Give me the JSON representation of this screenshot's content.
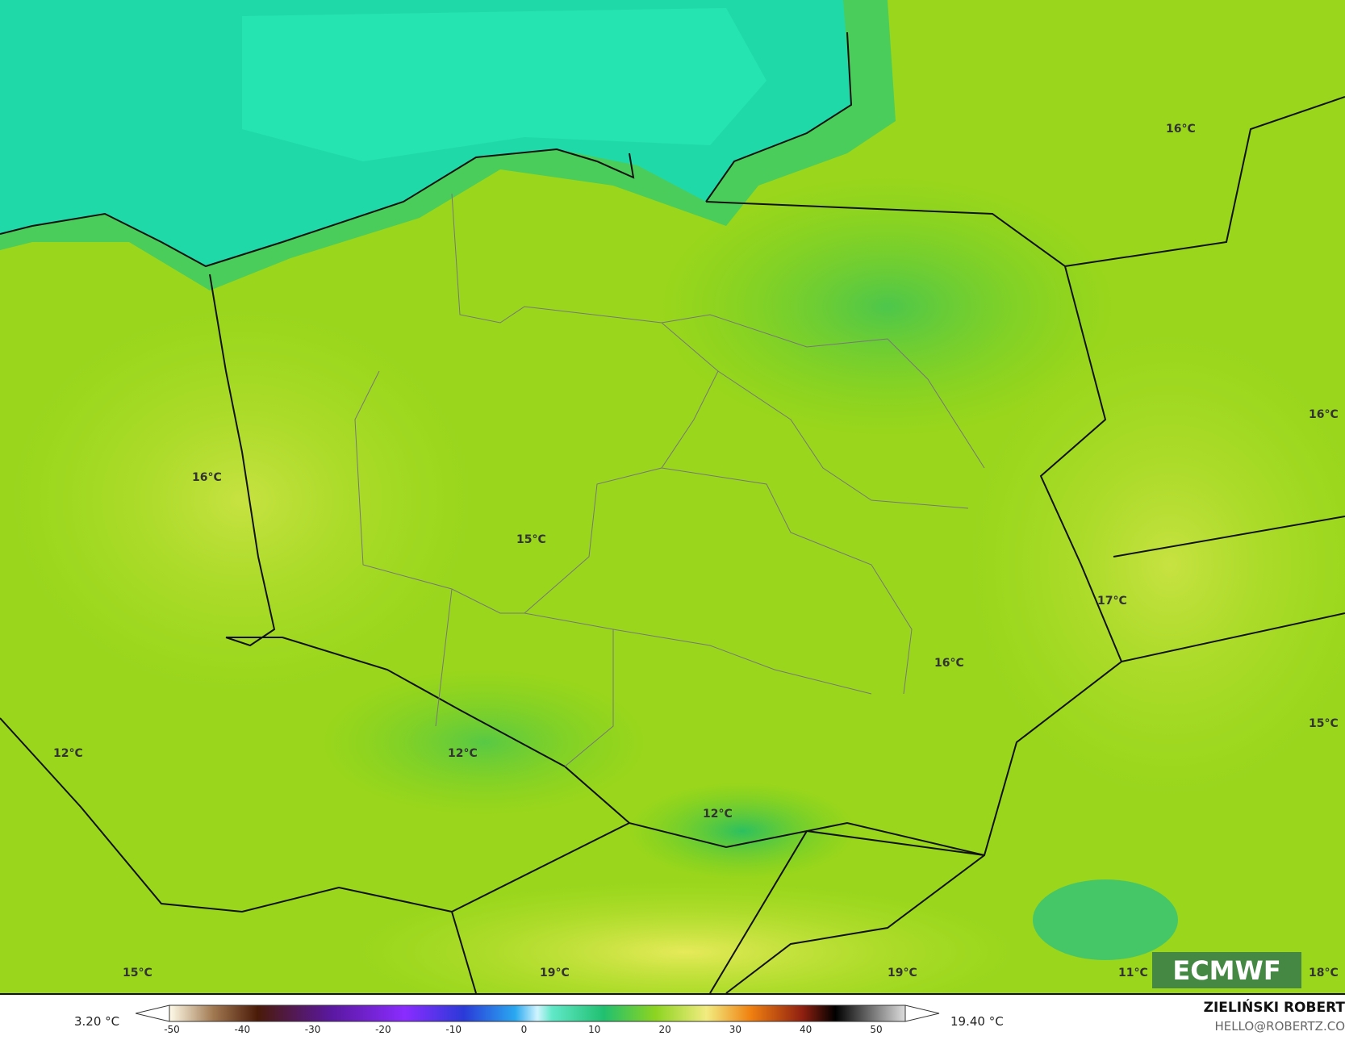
{
  "map": {
    "labels": [
      {
        "text": "16°C"
      },
      {
        "text": "16°C"
      },
      {
        "text": "16°C"
      },
      {
        "text": "15°C"
      },
      {
        "text": "17°C"
      },
      {
        "text": "16°C"
      },
      {
        "text": "15°C"
      },
      {
        "text": "12°C"
      },
      {
        "text": "12°C"
      },
      {
        "text": "12°C"
      },
      {
        "text": "15°C"
      },
      {
        "text": "19°C"
      },
      {
        "text": "19°C"
      },
      {
        "text": "11°C"
      },
      {
        "text": "18°C"
      }
    ],
    "colors": {
      "land": "#9ad81a",
      "sea": "#1fdaa8",
      "warm": "#d9e84a",
      "cool": "#3cc840"
    }
  },
  "logo": {
    "text": "ECMWF"
  },
  "colorbar": {
    "min_label": "3.20 °C",
    "max_label": "19.40 °C",
    "ticks": [
      "-50",
      "-40",
      "-30",
      "-20",
      "-10",
      "0",
      "10",
      "20",
      "30",
      "40",
      "50"
    ]
  },
  "credit": {
    "author": "ZIELIŃSKI ROBERT",
    "email": "HELLO@ROBERTZ.CO"
  }
}
